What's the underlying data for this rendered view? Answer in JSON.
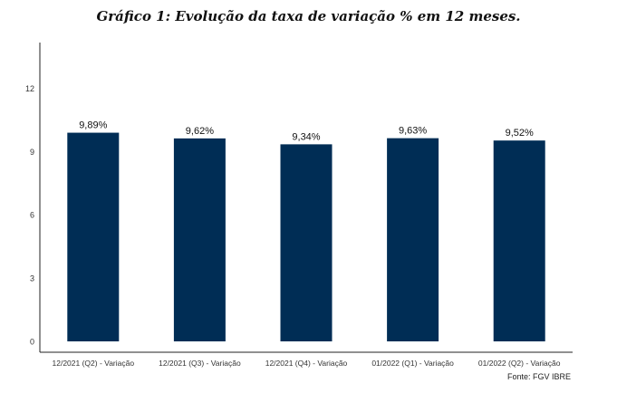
{
  "chart_data": {
    "type": "bar",
    "title": "Gráfico 1: Evolução da taxa de variação % em 12 meses.",
    "categories": [
      "12/2021 (Q2) - Variação",
      "12/2021 (Q3) - Variação",
      "12/2021 (Q4) - Variação",
      "01/2022 (Q1) - Variação",
      "01/2022 (Q2) - Variação"
    ],
    "values": [
      9.89,
      9.62,
      9.34,
      9.63,
      9.52
    ],
    "data_labels": [
      "9,89%",
      "9,62%",
      "9,34%",
      "9,63%",
      "9,52%"
    ],
    "yticks": [
      0,
      3,
      6,
      9,
      12
    ],
    "ylim": [
      0,
      14
    ],
    "xlabel": "",
    "ylabel": "",
    "grid": false,
    "bar_color": "#002D55",
    "source": "Fonte: FGV IBRE"
  }
}
